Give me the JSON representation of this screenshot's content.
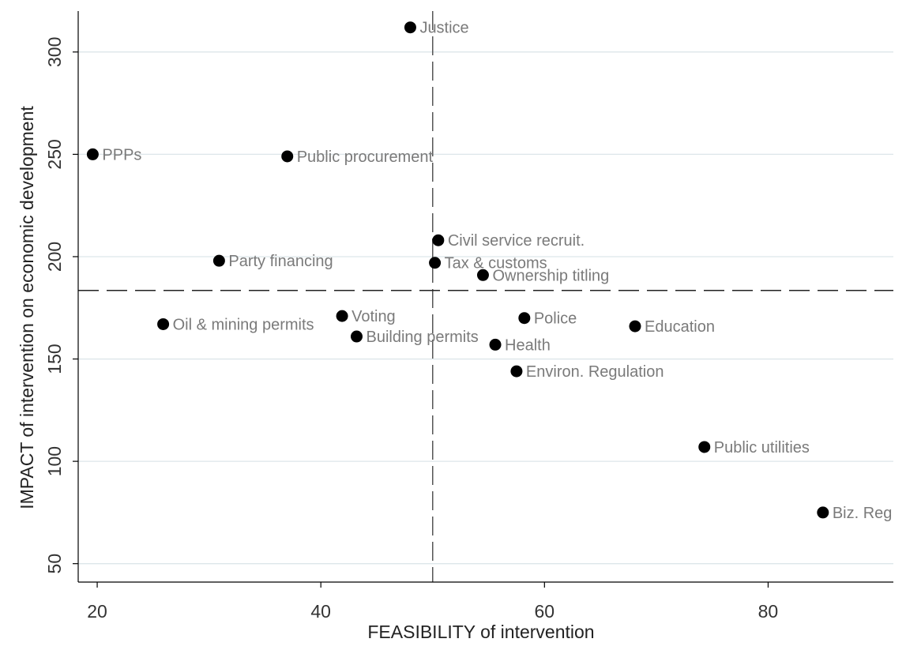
{
  "chart_data": {
    "type": "scatter",
    "xlabel": "FEASIBILITY of intervention",
    "ylabel": "IMPACT of intervention on economic development",
    "xlim": [
      18.3,
      91.2
    ],
    "ylim": [
      41,
      320
    ],
    "xticks": [
      20,
      40,
      60,
      80
    ],
    "yticks": [
      50,
      100,
      150,
      200,
      250,
      300
    ],
    "grid": "horizontal",
    "reference_lines": {
      "x": 50,
      "y": 183.5
    },
    "points": [
      {
        "label": "Justice",
        "x": 48.0,
        "y": 312
      },
      {
        "label": "PPPs",
        "x": 19.6,
        "y": 250
      },
      {
        "label": "Public procurement",
        "x": 37.0,
        "y": 249
      },
      {
        "label": "Civil service recruit.",
        "x": 50.5,
        "y": 208
      },
      {
        "label": "Party financing",
        "x": 30.9,
        "y": 198
      },
      {
        "label": "Tax & customs",
        "x": 50.2,
        "y": 197
      },
      {
        "label": "Ownership titling",
        "x": 54.5,
        "y": 191
      },
      {
        "label": "Voting",
        "x": 41.9,
        "y": 171
      },
      {
        "label": "Police",
        "x": 58.2,
        "y": 170
      },
      {
        "label": "Oil & mining permits",
        "x": 25.9,
        "y": 167
      },
      {
        "label": "Education",
        "x": 68.1,
        "y": 166
      },
      {
        "label": "Building permits",
        "x": 43.2,
        "y": 161
      },
      {
        "label": "Health",
        "x": 55.6,
        "y": 157
      },
      {
        "label": "Environ. Regulation",
        "x": 57.5,
        "y": 144
      },
      {
        "label": "Public utilities",
        "x": 74.3,
        "y": 107
      },
      {
        "label": "Biz. Reg",
        "x": 84.9,
        "y": 75
      }
    ]
  }
}
